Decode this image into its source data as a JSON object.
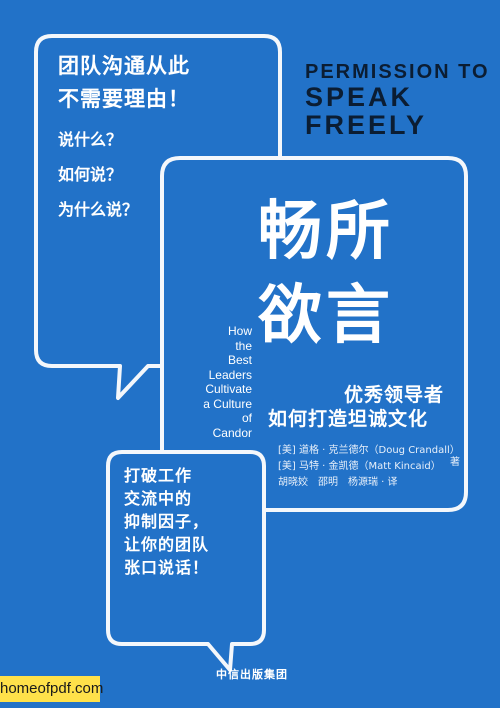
{
  "cover": {
    "background": "#2272c8",
    "accent_dark": "#0b1d33",
    "bubble1": {
      "lines": [
        "团队沟通从此",
        "不需要理由！"
      ],
      "questions": [
        "说什么？",
        "如何说？",
        "为什么说？"
      ]
    },
    "english_title": [
      "PERMISSION TO",
      "SPEAK",
      "FREELY"
    ],
    "chinese_title": [
      "畅所",
      "欲言"
    ],
    "english_subtitle": [
      "How",
      "the",
      "Best",
      "Leaders",
      "Cultivate",
      "a Culture",
      "of",
      "Candor"
    ],
    "chinese_subtitle": [
      "优秀领导者",
      "如何打造坦诚文化"
    ],
    "authors": [
      "[美] 道格 · 克兰德尔（Doug Crandall）",
      "[美] 马特 · 金凯德（Matt Kincaid）"
    ],
    "author_role": "著",
    "translators": "胡晓姣　邵明　杨源瑞 · 译",
    "bubble3": [
      "打破工作",
      "交流中的",
      "抑制因子，",
      "让你的团队",
      "张口说话！"
    ],
    "publisher": "中信出版集团",
    "watermark": "homeofpdf.com"
  }
}
